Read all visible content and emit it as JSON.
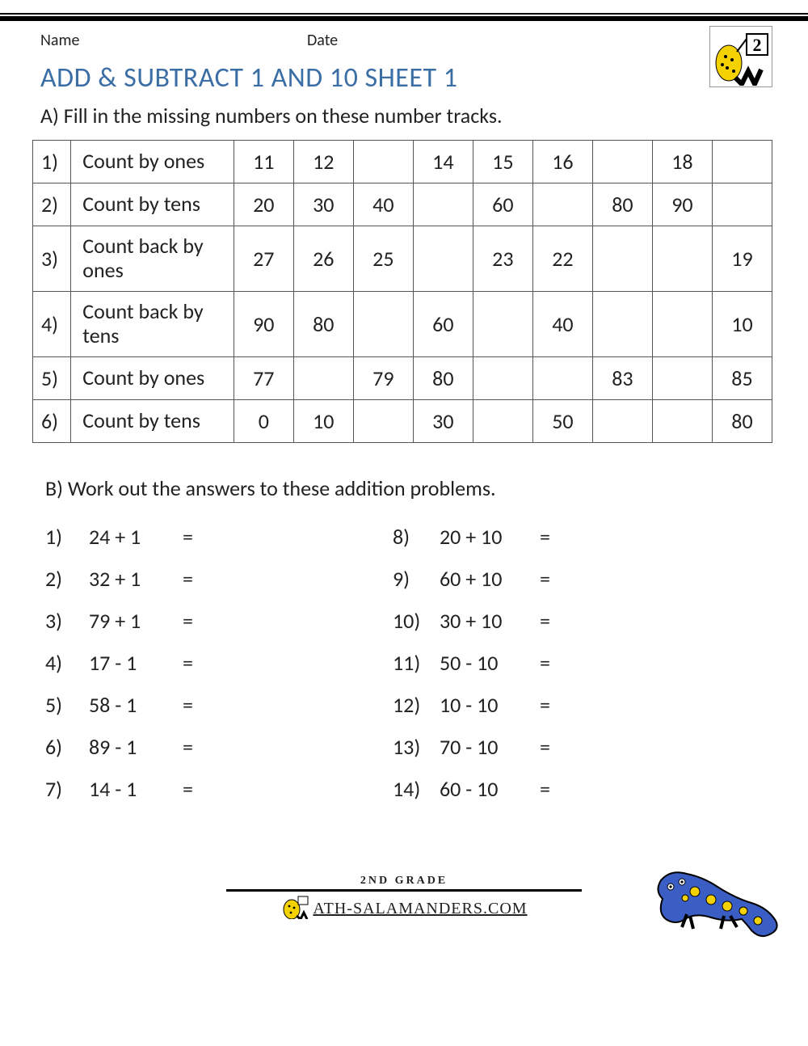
{
  "header": {
    "name_label": "Name",
    "date_label": "Date",
    "logo_number": "2"
  },
  "title": "ADD & SUBTRACT 1 AND 10 SHEET 1",
  "sectionA": {
    "instruction": "A) Fill in the missing numbers on these number tracks.",
    "rows": [
      {
        "n": "1)",
        "desc": "Count by ones",
        "cells": [
          "11",
          "12",
          "",
          "14",
          "15",
          "16",
          "",
          "18",
          ""
        ]
      },
      {
        "n": "2)",
        "desc": "Count by tens",
        "cells": [
          "20",
          "30",
          "40",
          "",
          "60",
          "",
          "80",
          "90",
          ""
        ]
      },
      {
        "n": "3)",
        "desc": "Count back by ones",
        "cells": [
          "27",
          "26",
          "25",
          "",
          "23",
          "22",
          "",
          "",
          "19"
        ]
      },
      {
        "n": "4)",
        "desc": "Count back by tens",
        "cells": [
          "90",
          "80",
          "",
          "60",
          "",
          "40",
          "",
          "",
          "10"
        ]
      },
      {
        "n": "5)",
        "desc": "Count by ones",
        "cells": [
          "77",
          "",
          "79",
          "80",
          "",
          "",
          "83",
          "",
          "85"
        ]
      },
      {
        "n": "6)",
        "desc": "Count by tens",
        "cells": [
          "0",
          "10",
          "",
          "30",
          "",
          "50",
          "",
          "",
          "80"
        ]
      }
    ]
  },
  "sectionB": {
    "instruction": "B) Work out the answers to these addition problems.",
    "left": [
      {
        "n": "1)",
        "expr": "24 + 1",
        "eq": "="
      },
      {
        "n": "2)",
        "expr": "32 + 1",
        "eq": "="
      },
      {
        "n": "3)",
        "expr": "79 + 1",
        "eq": "="
      },
      {
        "n": "4)",
        "expr": "17 - 1",
        "eq": "="
      },
      {
        "n": "5)",
        "expr": "58 - 1",
        "eq": "="
      },
      {
        "n": "6)",
        "expr": "89 - 1",
        "eq": "="
      },
      {
        "n": "7)",
        "expr": "14 - 1",
        "eq": "="
      }
    ],
    "right": [
      {
        "n": "8)",
        "expr": "20 + 10",
        "eq": "="
      },
      {
        "n": "9)",
        "expr": "60 + 10",
        "eq": "="
      },
      {
        "n": "10)",
        "expr": "30 + 10",
        "eq": "="
      },
      {
        "n": "11)",
        "expr": "50 - 10",
        "eq": "="
      },
      {
        "n": "12)",
        "expr": "10 - 10",
        "eq": "="
      },
      {
        "n": "13)",
        "expr": "70 - 10",
        "eq": "="
      },
      {
        "n": "14)",
        "expr": "60 - 10",
        "eq": "="
      }
    ]
  },
  "footer": {
    "grade": "2ND GRADE",
    "brand": "ATH-SALAMANDERS.COM"
  },
  "colors": {
    "title": "#3b6ea5",
    "border": "#555555",
    "text": "#222222",
    "sal_body": "#3b5ec4",
    "sal_spot": "#f4d100"
  }
}
